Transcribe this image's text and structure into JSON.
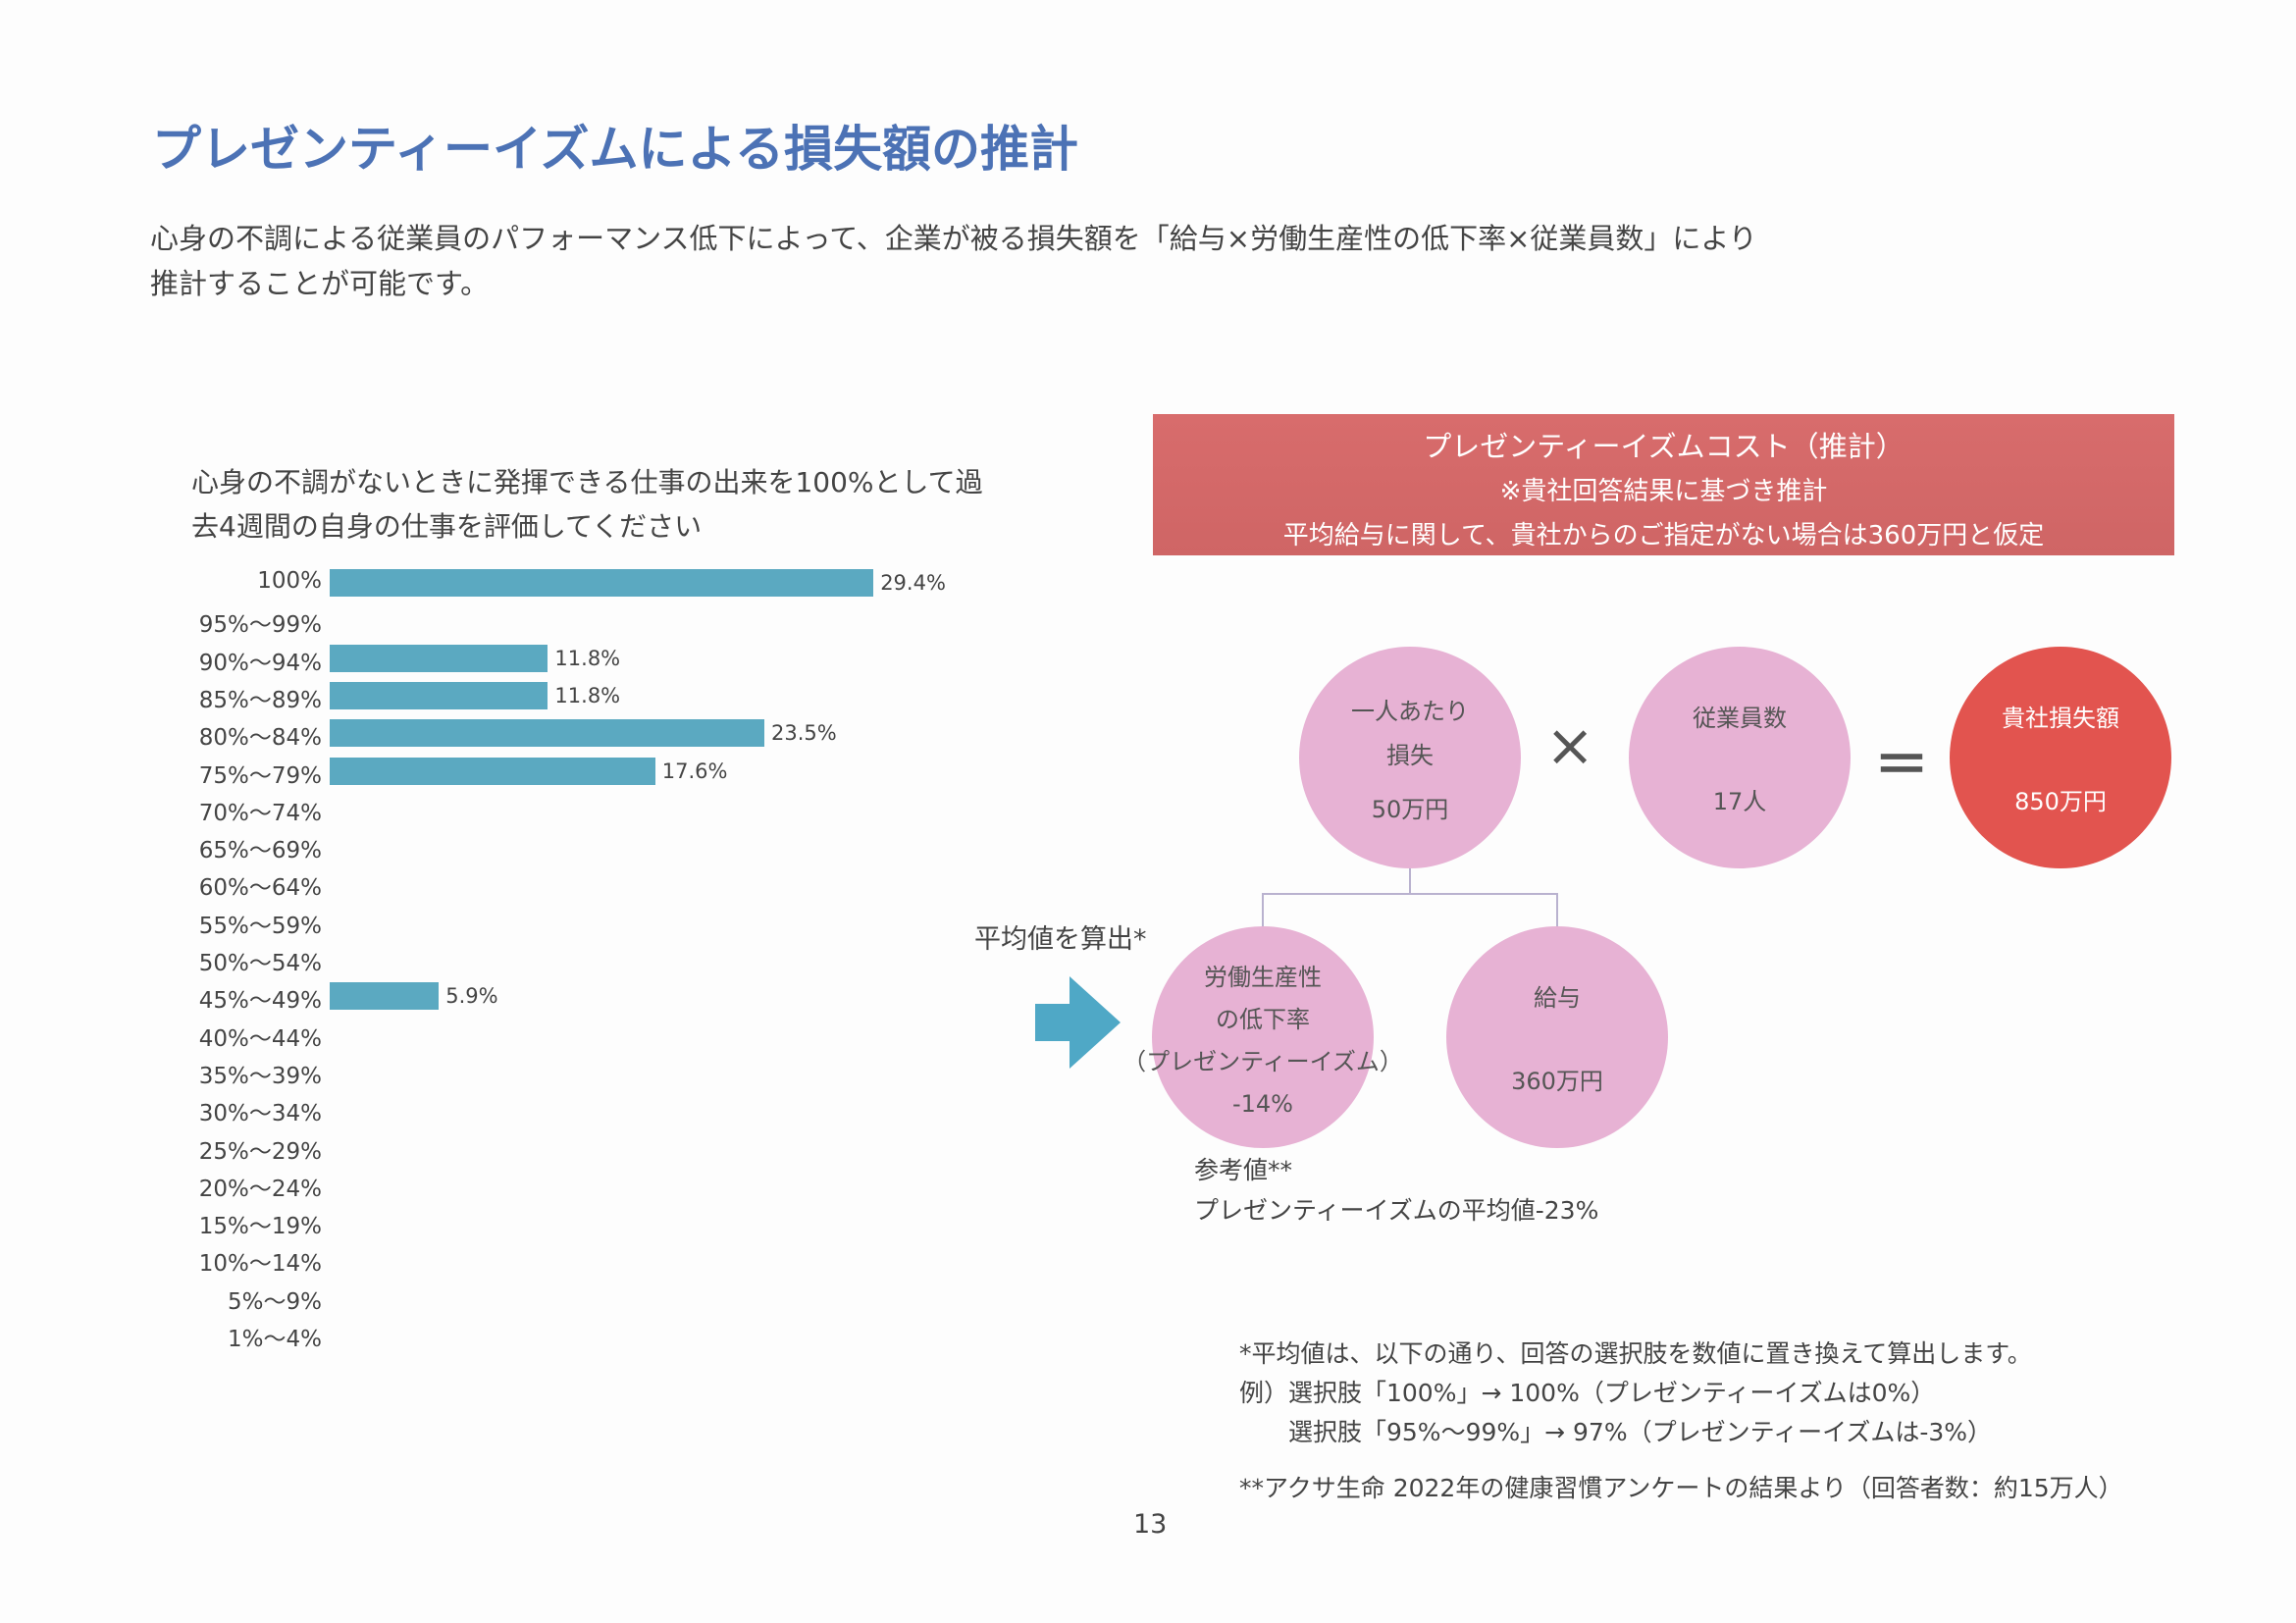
{
  "title": "プレゼンティーイズムによる損失額の推計",
  "subtitle": [
    "心身の不調による従業員のパフォーマンス低下によって、企業が被る損失額を「給与×労働生産性の低下率×従業員数」により",
    "推計することが可能です。"
  ],
  "chart_data": {
    "type": "bar",
    "orientation": "horizontal",
    "title": [
      "心身の不調がないときに発揮できる仕事の出来を100%として過",
      "去4週間の自身の仕事を評価してください"
    ],
    "categories": [
      "100%",
      "95%～99%",
      "90%～94%",
      "85%～89%",
      "80%～84%",
      "75%～79%",
      "70%～74%",
      "65%～69%",
      "60%～64%",
      "55%～59%",
      "50%～54%",
      "45%～49%",
      "40%～44%",
      "35%～39%",
      "30%～34%",
      "25%～29%",
      "20%～24%",
      "15%～19%",
      "10%～14%",
      "5%～9%",
      "1%～4%"
    ],
    "values": [
      29.4,
      null,
      11.8,
      11.8,
      23.5,
      17.6,
      null,
      null,
      null,
      null,
      null,
      5.9,
      null,
      null,
      null,
      null,
      null,
      null,
      null,
      null,
      null
    ],
    "labels": [
      "29.4%",
      "",
      "11.8%",
      "11.8%",
      "23.5%",
      "17.6%",
      "",
      "",
      "",
      "",
      "",
      "5.9%",
      "",
      "",
      "",
      "",
      "",
      "",
      "",
      "",
      ""
    ],
    "bar_color": "#5ba9c1"
  },
  "cost_box": {
    "title": "プレゼンティーイズムコスト（推計）",
    "line1": "※貴社回答結果に基づき推計",
    "line2": "平均給与に関して、貴社からのご指定がない場合は360万円と仮定",
    "color": "#d46a6a"
  },
  "formula": {
    "per_person": {
      "label1": "一人あたり",
      "label2": "損失",
      "value": "50万円"
    },
    "times": "×",
    "employees": {
      "label": "従業員数",
      "value": "17人"
    },
    "equals": "＝",
    "total": {
      "label": "貴社損失額",
      "value": "850万円"
    },
    "rate": {
      "label1": "労働生産性",
      "label2": "の低下率",
      "label3": "（プレゼンティーイズム）",
      "value": "-14%"
    },
    "salary": {
      "label": "給与",
      "value": "360万円"
    },
    "average_note": "平均値を算出*",
    "reference_label": "参考値**",
    "reference_value": "プレゼンティーイズムの平均値-23%"
  },
  "footnotes": [
    "*平均値は、以下の通り、回答の選択肢を数値に置き換えて算出します。",
    "例）選択肢「100%」→ 100%（プレゼンティーイズムは0%）",
    "選択肢「95%～99%」→ 97%（プレゼンティーイズムは-3%）",
    "**アクサ生命 2022年の健康習慣アンケートの結果より（回答者数：約15万人）"
  ],
  "page_number": "13"
}
